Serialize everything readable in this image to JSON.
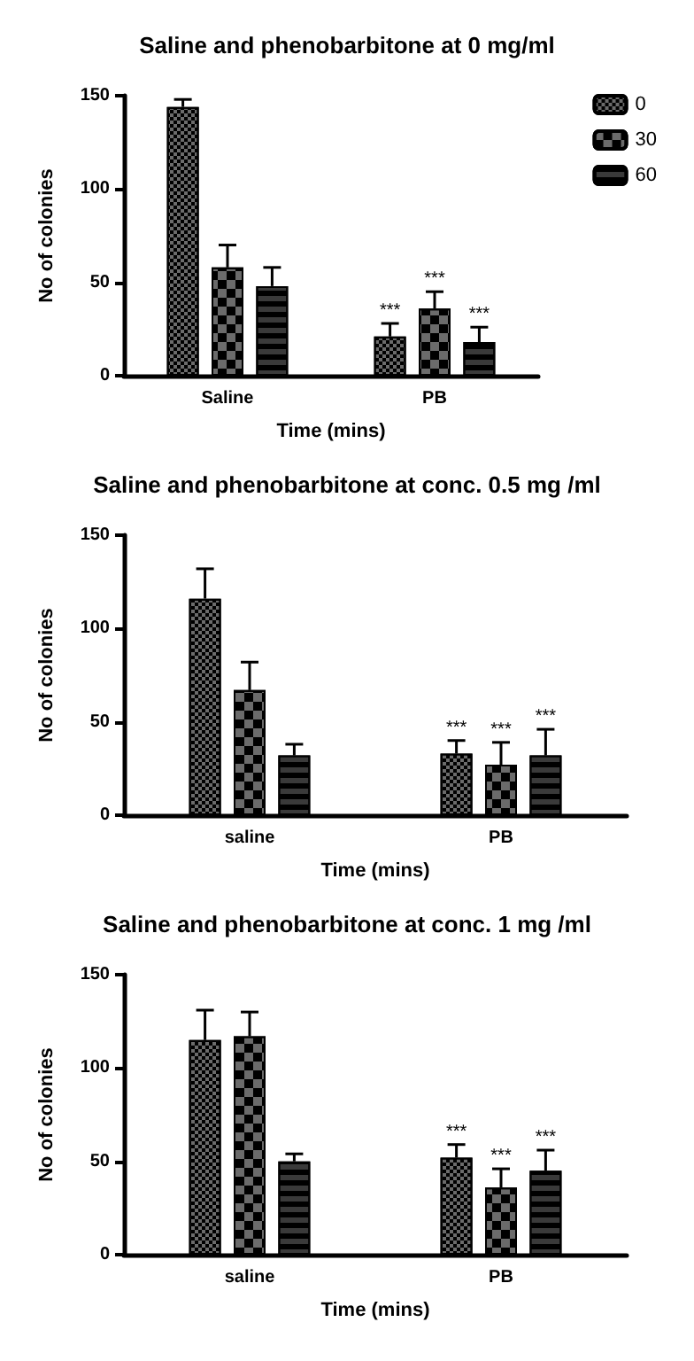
{
  "chart_data": [
    {
      "type": "bar",
      "title": "Saline and phenobarbitone at 0 mg/ml",
      "xlabel": "Time (mins)",
      "ylabel": "No of colonies",
      "categories": [
        "Saline",
        "PB"
      ],
      "ylim": [
        0,
        150
      ],
      "yticks": [
        0,
        50,
        100,
        150
      ],
      "legend": "top right",
      "series": [
        {
          "name": "0",
          "color": "#6b6b6b",
          "values": [
            144,
            21
          ],
          "errors": [
            [
              144,
              148
            ],
            [
              21,
              28
            ]
          ],
          "value_labels": [
            null,
            "***"
          ]
        },
        {
          "name": "30",
          "color": "#6b6b6b",
          "values": [
            58,
            36
          ],
          "errors": [
            [
              58,
              70
            ],
            [
              36,
              45
            ]
          ],
          "value_labels": [
            null,
            "***"
          ]
        },
        {
          "name": "60",
          "color": "#3a3a3a",
          "values": [
            48,
            18
          ],
          "errors": [
            [
              48,
              58
            ],
            [
              18,
              26
            ]
          ],
          "value_labels": [
            null,
            "***"
          ]
        }
      ]
    },
    {
      "type": "bar",
      "title": "Saline and phenobarbitone at conc. 0.5 mg /ml",
      "xlabel": "Time (mins)",
      "ylabel": "No of colonies",
      "categories": [
        "saline",
        "PB"
      ],
      "ylim": [
        0,
        150
      ],
      "yticks": [
        0,
        50,
        100,
        150
      ],
      "series": [
        {
          "color": "#6b6b6b",
          "values": [
            116,
            33
          ],
          "errors": [
            [
              116,
              132
            ],
            [
              33,
              40
            ]
          ],
          "value_labels": [
            null,
            "***"
          ]
        },
        {
          "color": "#6b6b6b",
          "values": [
            67,
            27
          ],
          "errors": [
            [
              67,
              82
            ],
            [
              27,
              39
            ]
          ],
          "value_labels": [
            null,
            "***"
          ]
        },
        {
          "color": "#3a3a3a",
          "values": [
            32,
            32
          ],
          "errors": [
            [
              32,
              38
            ],
            [
              32,
              46
            ]
          ],
          "value_labels": [
            null,
            "***"
          ]
        }
      ]
    },
    {
      "type": "bar",
      "title": "Saline and phenobarbitone at conc. 1 mg /ml",
      "xlabel": "Time (mins)",
      "ylabel": "No of colonies",
      "categories": [
        "saline",
        "PB"
      ],
      "ylim": [
        0,
        150
      ],
      "yticks": [
        0,
        50,
        100,
        150
      ],
      "series": [
        {
          "color": "#6b6b6b",
          "values": [
            115,
            52
          ],
          "errors": [
            [
              115,
              131
            ],
            [
              52,
              59
            ]
          ],
          "value_labels": [
            null,
            "***"
          ]
        },
        {
          "color": "#6b6b6b",
          "values": [
            117,
            36
          ],
          "errors": [
            [
              117,
              130
            ],
            [
              36,
              46
            ]
          ],
          "value_labels": [
            null,
            "***"
          ]
        },
        {
          "color": "#3a3a3a",
          "values": [
            50,
            45
          ],
          "errors": [
            [
              50,
              54
            ],
            [
              45,
              56
            ]
          ],
          "value_labels": [
            null,
            "***"
          ]
        }
      ]
    }
  ]
}
